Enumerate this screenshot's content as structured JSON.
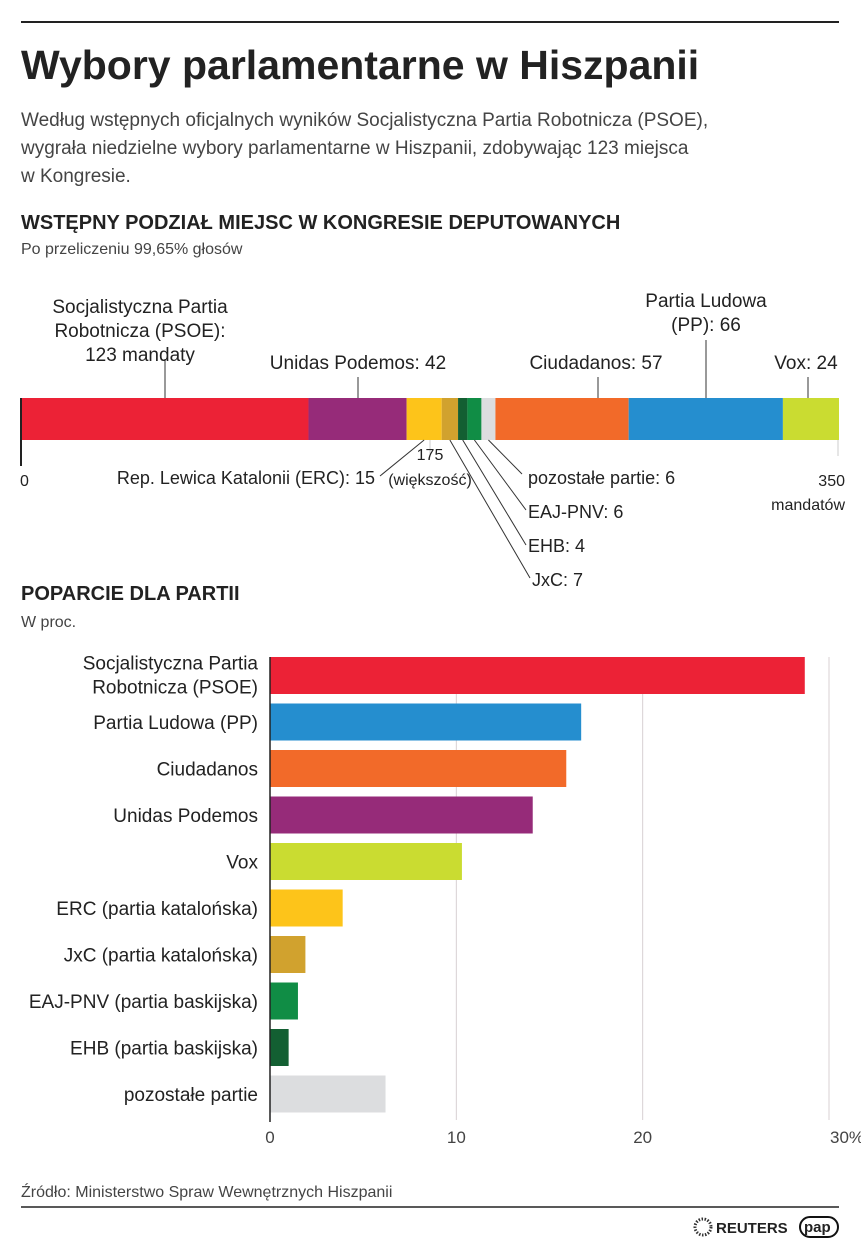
{
  "title": "Wybory parlamentarne w Hiszpanii",
  "intro": [
    "Według wstępnych oficjalnych wyników Socjalistyczna Partia Robotnicza (PSOE),",
    "wygrała niedzielne wybory parlamentarne w Hiszpanii, zdobywając 123 miejsca",
    "w Kongresie."
  ],
  "source": "Źródło: Ministerstwo Spraw Wewnętrznych Hiszpanii",
  "logos": [
    "REUTERS",
    "pap"
  ],
  "chart_data": [
    {
      "type": "bar",
      "orientation": "horizontal-stacked",
      "title": "WSTĘPNY PODZIAŁ MIEJSC W KONGRESIE DEPUTOWANYCH",
      "subtitle": "Po przeliczeniu 99,65% głosów",
      "xlim": [
        0,
        350
      ],
      "ticks": [
        {
          "value": 0,
          "label": [
            "0"
          ]
        },
        {
          "value": 175,
          "label": [
            "175",
            "(większość)"
          ]
        },
        {
          "value": 350,
          "label": [
            "350",
            "mandatów"
          ]
        }
      ],
      "segments": [
        {
          "party": "PSOE",
          "seats": 123,
          "color": "#ec2236",
          "label": [
            "Socjalistyczna Partia",
            "Robotnicza (PSOE):",
            "123 mandaty"
          ]
        },
        {
          "party": "UP",
          "seats": 42,
          "color": "#962b79",
          "label": [
            "Unidas Podemos: 42"
          ]
        },
        {
          "party": "ERC",
          "seats": 15,
          "color": "#fdc41a",
          "label": [
            "Rep. Lewica Katalonii (ERC): 15"
          ]
        },
        {
          "party": "JxC",
          "seats": 7,
          "color": "#d1a22e",
          "label": [
            "JxC: 7"
          ]
        },
        {
          "party": "EHB",
          "seats": 4,
          "color": "#135f32",
          "label": [
            "EHB: 4"
          ]
        },
        {
          "party": "EAJ-PNV",
          "seats": 6,
          "color": "#108d45",
          "label": [
            "EAJ-PNV: 6"
          ]
        },
        {
          "party": "others",
          "seats": 6,
          "color": "#dcdddf",
          "label": [
            "pozostałe partie: 6"
          ]
        },
        {
          "party": "Cs",
          "seats": 57,
          "color": "#f26a29",
          "label": [
            "Ciudadanos: 57"
          ]
        },
        {
          "party": "PP",
          "seats": 66,
          "color": "#258ecf",
          "label": [
            "Partia Ludowa",
            "(PP): 66"
          ]
        },
        {
          "party": "Vox",
          "seats": 24,
          "color": "#cadc31",
          "label": [
            "Vox: 24"
          ]
        }
      ]
    },
    {
      "type": "bar",
      "orientation": "horizontal",
      "title": "POPARCIE DLA PARTII",
      "subtitle": "W proc.",
      "xlim": [
        0,
        30
      ],
      "ticks": [
        "0",
        "10",
        "20",
        "30%"
      ],
      "grid": true,
      "categories": [
        [
          "Socjalistyczna Partia",
          "Robotnicza (PSOE)"
        ],
        [
          "Partia Ludowa (PP)"
        ],
        [
          "Ciudadanos"
        ],
        [
          "Unidas Podemos"
        ],
        [
          "Vox"
        ],
        [
          "ERC (partia katalońska)"
        ],
        [
          "JxC (partia katalońska)"
        ],
        [
          "EAJ-PNV (partia baskijska)"
        ],
        [
          "EHB (partia baskijska)"
        ],
        [
          "pozostałe partie"
        ]
      ],
      "values": [
        28.7,
        16.7,
        15.9,
        14.1,
        10.3,
        3.9,
        1.9,
        1.5,
        1.0,
        6.2
      ],
      "colors": [
        "#ec2236",
        "#258ecf",
        "#f26a29",
        "#962b79",
        "#cadc31",
        "#fdc41a",
        "#d1a22e",
        "#108d45",
        "#135f32",
        "#dcdddf"
      ]
    }
  ]
}
